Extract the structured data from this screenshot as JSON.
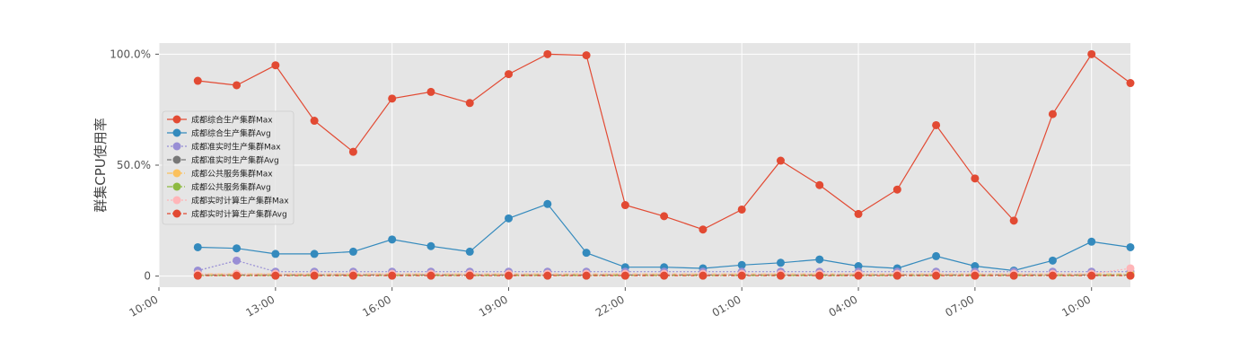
{
  "chart_data": {
    "type": "line",
    "ylabel": "群集CPU使用率",
    "yticks": [
      {
        "value": 0,
        "label": "0"
      },
      {
        "value": 50,
        "label": "50.0%"
      },
      {
        "value": 100,
        "label": "100.0%"
      }
    ],
    "ylim": [
      -5,
      105
    ],
    "xticks": [
      {
        "index": -1,
        "label": "10:00"
      },
      {
        "index": 2,
        "label": "13:00"
      },
      {
        "index": 5,
        "label": "16:00"
      },
      {
        "index": 8,
        "label": "19:00"
      },
      {
        "index": 11,
        "label": "22:00"
      },
      {
        "index": 14,
        "label": "01:00"
      },
      {
        "index": 17,
        "label": "04:00"
      },
      {
        "index": 20,
        "label": "07:00"
      },
      {
        "index": 23,
        "label": "10:00"
      }
    ],
    "xlim": [
      -1,
      24
    ],
    "x_times": [
      "11:00",
      "12:00",
      "13:00",
      "14:00",
      "15:00",
      "16:00",
      "17:00",
      "18:00",
      "19:00",
      "20:00",
      "21:00",
      "22:00",
      "23:00",
      "00:00",
      "01:00",
      "02:00",
      "03:00",
      "04:00",
      "05:00",
      "06:00",
      "07:00",
      "08:00",
      "09:00",
      "10:00",
      "11:00"
    ],
    "grid": true,
    "legend_position": "center-left",
    "series": [
      {
        "name": "成都综合生产集群Max",
        "color": "#E24A33",
        "dash": "",
        "values": [
          88,
          86,
          95,
          70,
          56,
          80,
          83,
          78,
          91,
          100,
          99.5,
          32,
          27,
          21,
          30,
          52,
          41,
          28,
          39,
          68,
          44,
          25,
          73,
          100,
          87
        ]
      },
      {
        "name": "成都综合生产集群Avg",
        "color": "#348ABD",
        "dash": "",
        "values": [
          13,
          12.5,
          10,
          10,
          11,
          16.5,
          13.5,
          11,
          26,
          32.5,
          10.5,
          4,
          4,
          3.5,
          5,
          6,
          7.5,
          4.5,
          3.5,
          9,
          4.5,
          2.5,
          7,
          15.5,
          13
        ]
      },
      {
        "name": "成都准实时生产集群Max",
        "color": "#988ED5",
        "dash": "2,2",
        "values": [
          2.5,
          7,
          2,
          2,
          2,
          2,
          2,
          2,
          2,
          2,
          2,
          2,
          2,
          2,
          2,
          2,
          2,
          2,
          2,
          2,
          2,
          2,
          2,
          2,
          2
        ]
      },
      {
        "name": "成都准实时生产集群Avg",
        "color": "#777777",
        "dash": "5,3",
        "values": [
          0.5,
          0.5,
          0.5,
          0.5,
          0.5,
          0.5,
          0.5,
          0.5,
          0.5,
          0.5,
          0.5,
          0.5,
          0.5,
          0.5,
          0.5,
          0.5,
          0.5,
          0.5,
          0.5,
          0.5,
          0.5,
          0.5,
          0.5,
          0.5,
          0.5
        ]
      },
      {
        "name": "成都公共服务集群Max",
        "color": "#FBC15E",
        "dash": "6,2,1,2",
        "values": [
          1,
          1,
          1,
          1,
          1,
          1,
          1,
          1,
          1,
          1,
          1,
          1,
          1,
          1,
          1,
          1,
          1,
          1,
          1,
          1,
          1,
          1,
          1,
          1,
          1
        ]
      },
      {
        "name": "成都公共服务集群Avg",
        "color": "#8EBA42",
        "dash": "6,2,1,2",
        "values": [
          0.3,
          0.3,
          0.3,
          0.3,
          0.3,
          0.3,
          0.3,
          0.3,
          0.3,
          0.3,
          0.3,
          0.3,
          0.3,
          0.3,
          0.3,
          0.3,
          0.3,
          0.3,
          0.3,
          0.3,
          0.3,
          0.3,
          0.3,
          0.3,
          0.3
        ]
      },
      {
        "name": "成都实时计算生产集群Max",
        "color": "#FFB5B8",
        "dash": "2,2",
        "values": [
          1,
          1,
          1,
          1,
          1,
          1,
          1,
          1,
          1,
          1,
          1,
          1,
          1,
          1,
          1,
          1,
          1,
          1,
          1,
          1,
          1,
          1,
          1,
          1,
          3.5
        ]
      },
      {
        "name": "成都实时计算生产集群Avg",
        "color": "#E24A33",
        "dash": "4,2,1,2",
        "values": [
          0.2,
          0.2,
          0.2,
          0.2,
          0.2,
          0.2,
          0.2,
          0.2,
          0.2,
          0.2,
          0.2,
          0.2,
          0.2,
          0.2,
          0.2,
          0.2,
          0.2,
          0.2,
          0.2,
          0.2,
          0.2,
          0.2,
          0.2,
          0.2,
          0.2
        ]
      }
    ]
  }
}
